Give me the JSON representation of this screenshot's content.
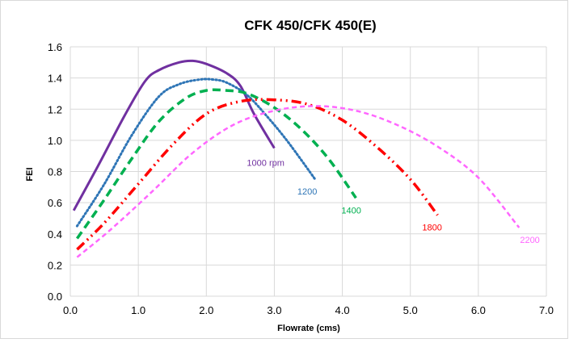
{
  "chart_data": {
    "type": "line",
    "title": "CFK 450/CFK 450(E)",
    "xlabel": "Flowrate (cms)",
    "ylabel": "FEI",
    "xlim": [
      0.0,
      7.0
    ],
    "ylim": [
      0.0,
      1.6
    ],
    "x_ticks": [
      "0.0",
      "1.0",
      "2.0",
      "3.0",
      "4.0",
      "5.0",
      "6.0",
      "7.0"
    ],
    "y_ticks": [
      "0.0",
      "0.2",
      "0.4",
      "0.6",
      "0.8",
      "1.0",
      "1.2",
      "1.4",
      "1.6"
    ],
    "grid": true,
    "legend": "none (series labelled inline at curve ends)",
    "series": [
      {
        "name": "1000 rpm",
        "color": "#7030A0",
        "style": "solid",
        "x": [
          0.05,
          0.4,
          0.8,
          1.1,
          1.3,
          1.6,
          1.8,
          2.0,
          2.3,
          2.5,
          2.7,
          3.0
        ],
        "y": [
          0.55,
          0.83,
          1.16,
          1.38,
          1.45,
          1.5,
          1.51,
          1.49,
          1.43,
          1.35,
          1.17,
          0.95
        ]
      },
      {
        "name": "1200",
        "color": "#2E75B6",
        "style": "dotted",
        "x": [
          0.1,
          0.5,
          0.9,
          1.3,
          1.6,
          1.9,
          2.1,
          2.3,
          2.6,
          2.9,
          3.2,
          3.6
        ],
        "y": [
          0.45,
          0.72,
          1.03,
          1.28,
          1.36,
          1.39,
          1.39,
          1.37,
          1.29,
          1.15,
          0.99,
          0.75
        ]
      },
      {
        "name": "1400",
        "color": "#00B050",
        "style": "dashed",
        "x": [
          0.1,
          0.5,
          0.9,
          1.3,
          1.7,
          2.0,
          2.3,
          2.6,
          3.0,
          3.4,
          3.8,
          4.2
        ],
        "y": [
          0.37,
          0.62,
          0.88,
          1.12,
          1.27,
          1.32,
          1.32,
          1.3,
          1.21,
          1.07,
          0.88,
          0.63
        ]
      },
      {
        "name": "1800",
        "color": "#FF0000",
        "style": "dash-dot-dot",
        "x": [
          0.1,
          0.5,
          1.0,
          1.5,
          2.0,
          2.5,
          3.0,
          3.5,
          4.0,
          4.5,
          5.0,
          5.4
        ],
        "y": [
          0.3,
          0.47,
          0.72,
          0.97,
          1.17,
          1.25,
          1.26,
          1.23,
          1.13,
          0.96,
          0.75,
          0.52
        ]
      },
      {
        "name": "2200",
        "color": "#FF66FF",
        "style": "short-dash",
        "x": [
          0.1,
          0.6,
          1.2,
          1.8,
          2.4,
          3.0,
          3.6,
          4.2,
          4.8,
          5.4,
          6.0,
          6.6
        ],
        "y": [
          0.25,
          0.43,
          0.67,
          0.92,
          1.1,
          1.19,
          1.22,
          1.19,
          1.1,
          0.96,
          0.76,
          0.44
        ]
      }
    ]
  }
}
